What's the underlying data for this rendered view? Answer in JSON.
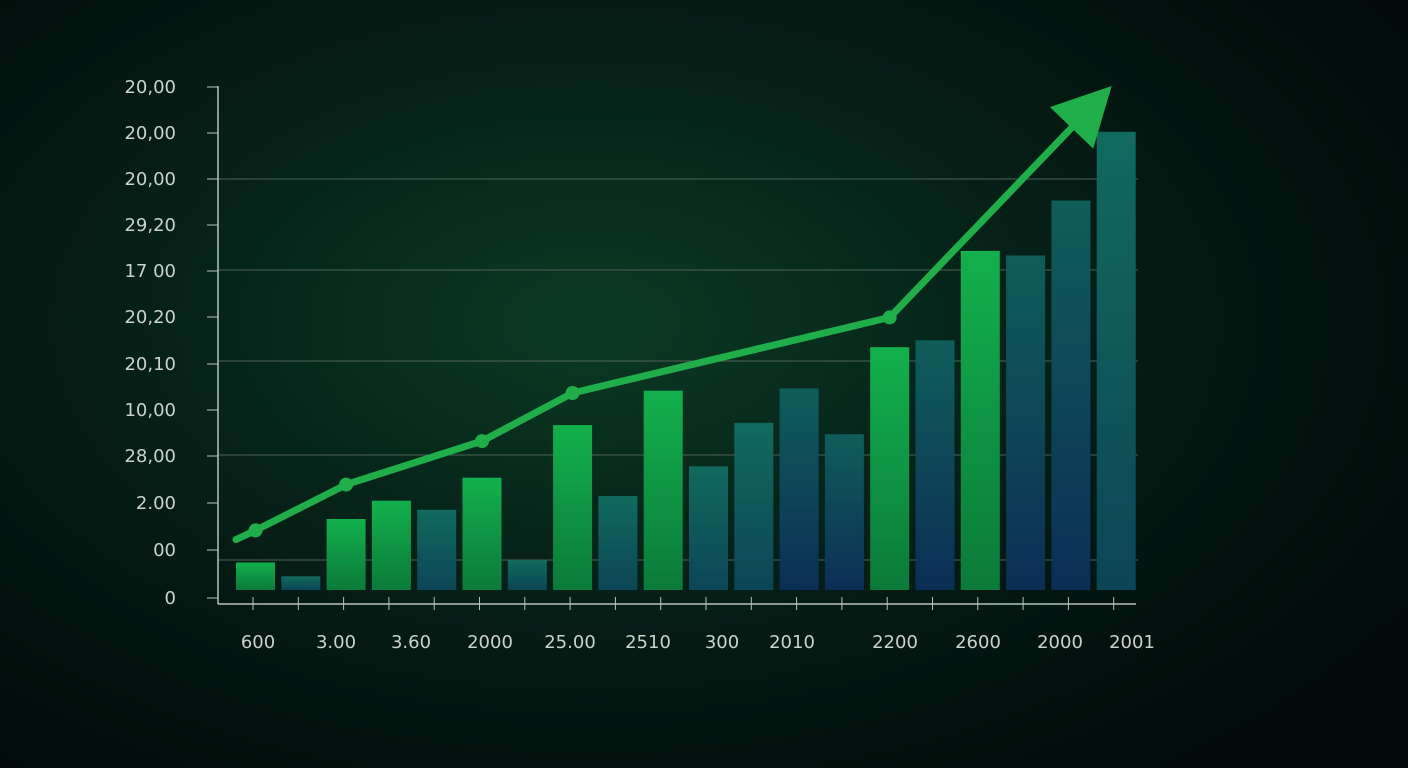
{
  "chart_data": {
    "type": "bar",
    "title": "",
    "xlabel": "",
    "ylabel": "",
    "y_tick_labels": [
      "20,00",
      "20,00",
      "20,00",
      "29,20",
      "17 00",
      "20,20",
      "20,10",
      "10,00",
      "28,00",
      "2.00",
      "00",
      "0"
    ],
    "x_tick_labels": [
      "600",
      "3.00",
      "3.60",
      "2000",
      "25.00",
      "2510",
      "300",
      "2010",
      "2200",
      "2600",
      "2000",
      "2001"
    ],
    "ylim": [
      0,
      11
    ],
    "grid": true,
    "legend": "none",
    "bars": {
      "values": [
        0.6,
        0.3,
        1.55,
        1.95,
        1.75,
        2.45,
        0.65,
        3.6,
        2.05,
        4.35,
        2.7,
        3.65,
        4.4,
        3.4,
        5.3,
        5.45,
        7.4,
        7.3,
        8.5,
        10.0
      ]
    },
    "trend_line": {
      "x_index": [
        0,
        2,
        5,
        7,
        14
      ],
      "values": [
        1.3,
        2.3,
        3.25,
        4.3,
        5.95
      ],
      "arrow_end": {
        "x_index": 18.9,
        "value": 11.0
      }
    },
    "colors": {
      "bar_green": "#12a84a",
      "bar_teal": "#0f5a5a",
      "bar_blue": "#10305a",
      "trend": "#1fae4a",
      "axis": "#b8c2bd",
      "grid": "#5b6a63",
      "tick_text": "#c9d2cd"
    }
  }
}
